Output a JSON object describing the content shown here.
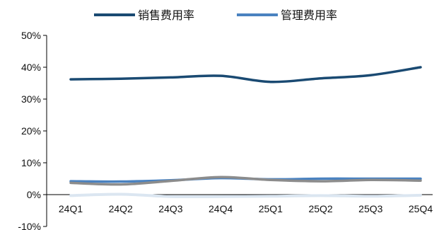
{
  "chart_data": {
    "type": "line",
    "categories": [
      "24Q1",
      "24Q2",
      "24Q3",
      "24Q4",
      "25Q1",
      "25Q2",
      "25Q3",
      "25Q4"
    ],
    "ylim": [
      -10,
      50
    ],
    "yticks": [
      "50%",
      "40%",
      "30%",
      "20%",
      "10%",
      "0%",
      "-10%"
    ],
    "ytick_values": [
      50,
      40,
      30,
      20,
      10,
      0,
      -10
    ],
    "legend_position": "top",
    "grid": false,
    "series": [
      {
        "name": "销售费用率",
        "color": "#1a4a72",
        "in_legend": true,
        "values": [
          36.2,
          36.4,
          36.8,
          37.3,
          35.4,
          36.5,
          37.5,
          40.0
        ]
      },
      {
        "name": "管理费用率",
        "color": "#4a82c0",
        "in_legend": true,
        "values": [
          4.2,
          4.1,
          4.5,
          5.2,
          4.8,
          5.0,
          5.0,
          5.0
        ]
      },
      {
        "name": "",
        "color": "#8c8c8c",
        "in_legend": false,
        "values": [
          3.7,
          3.2,
          4.3,
          5.5,
          4.6,
          4.2,
          4.6,
          4.4
        ]
      },
      {
        "name": "",
        "color": "#dbe6f1",
        "in_legend": false,
        "values": [
          -0.3,
          0.1,
          -0.6,
          -0.6,
          -0.5,
          -0.3,
          -0.5,
          -0.2
        ]
      }
    ]
  }
}
